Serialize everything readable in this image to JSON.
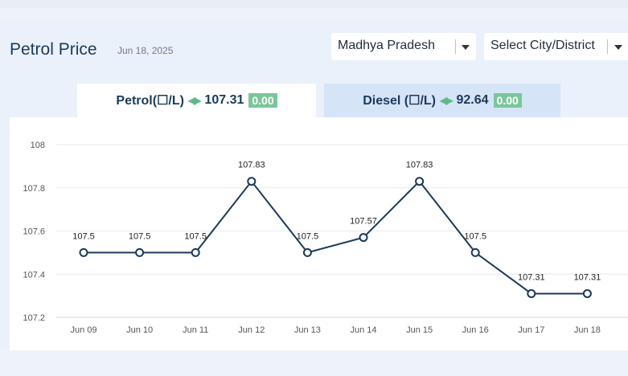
{
  "header": {
    "title": "Petrol Price",
    "date": "Jun 18, 2025"
  },
  "filters": {
    "state": "Madhya Pradesh",
    "city": "Select City/District"
  },
  "tabs": [
    {
      "label": "Petrol(☐/L)",
      "price": "107.31",
      "change": "0.00",
      "active": true
    },
    {
      "label": "Diesel (☐/L)",
      "price": "92.64",
      "change": "0.00",
      "active": false
    }
  ],
  "colors": {
    "line": "#1c3a5a",
    "badge": "#7cc69a",
    "arrow": "#5fb98a"
  },
  "chart_data": {
    "type": "line",
    "title": "",
    "xlabel": "",
    "ylabel": "",
    "categories": [
      "Jun 09",
      "Jun 10",
      "Jun 11",
      "Jun 12",
      "Jun 13",
      "Jun 14",
      "Jun 15",
      "Jun 16",
      "Jun 17",
      "Jun 18"
    ],
    "series": [
      {
        "values": [
          107.5,
          107.5,
          107.5,
          107.83,
          107.5,
          107.57,
          107.83,
          107.5,
          107.31,
          107.31
        ]
      }
    ],
    "data_labels": [
      "107.5",
      "107.5",
      "107.5",
      "107.83",
      "107.5",
      "107.57",
      "107.83",
      "107.5",
      "107.31",
      "107.31"
    ],
    "yticks": [
      {
        "value": 107.2,
        "label": "107.2"
      },
      {
        "value": 107.4,
        "label": "107.4"
      },
      {
        "value": 107.6,
        "label": "107.6"
      },
      {
        "value": 107.8,
        "label": "107.8"
      },
      {
        "value": 108,
        "label": "108"
      }
    ],
    "ylim": [
      107.2,
      108
    ],
    "grid": true,
    "legend": "none"
  }
}
